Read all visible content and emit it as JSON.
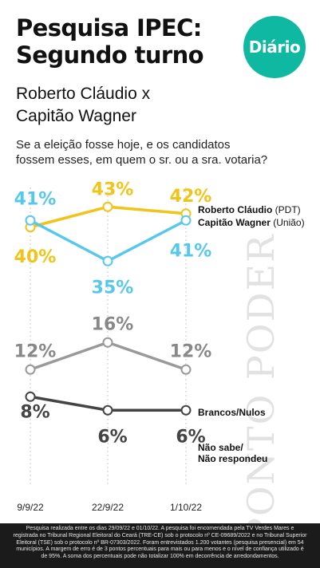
{
  "header": {
    "title_line1": "Pesquisa IPEC:",
    "title_line2": "Segundo turno",
    "logo": "Diário",
    "subtitle_line1": "Roberto Cláudio x",
    "subtitle_line2": "Capitão Wagner",
    "question_line1": "Se a eleição fosse hoje, e os candidatos",
    "question_line2": "fossem esses, em quem o sr. ou a sra. votaria?"
  },
  "watermark": "PONTO PODER",
  "colors": {
    "roberto": "#f0c419",
    "wagner": "#56c8ee",
    "brancos": "#999999",
    "nao_sabe": "#444444",
    "logo": "#0fb8a0"
  },
  "chart_data": {
    "type": "line",
    "categories": [
      "9/9/22",
      "22/9/22",
      "1/10/22"
    ],
    "series": [
      {
        "name": "Roberto Cláudio",
        "party": "(PDT)",
        "values": [
          40,
          43,
          42
        ],
        "color": "#f0c419",
        "labels": [
          "40%",
          "43%",
          "42%"
        ]
      },
      {
        "name": "Capitão Wagner",
        "party": "(União)",
        "values": [
          41,
          35,
          41
        ],
        "color": "#56c8ee",
        "labels": [
          "41%",
          "35%",
          "41%"
        ]
      },
      {
        "name": "Brancos/Nulos",
        "party": "",
        "values": [
          12,
          16,
          12
        ],
        "color": "#999999",
        "labels": [
          "12%",
          "16%",
          "12%"
        ]
      },
      {
        "name": "Não sabe/",
        "name2": "Não respondeu",
        "party": "",
        "values": [
          8,
          6,
          6
        ],
        "color": "#444444",
        "labels": [
          "8%",
          "6%",
          "6%"
        ]
      }
    ]
  },
  "footnote": {
    "line1": "Pesquisa realizada entre os dias 29/09/22 e 01/10/22. A pesquisa foi encomendada pela TV Verdes Mares e",
    "line2": "registrada no Tribunal Regional Eleitoral do Ceará (TRE-CE) sob o protocolo nº CE-09689/2022 e no Tribunal Superior",
    "line3": "Eleitoral (TSE) sob o protocolo nº BR-07303/2022. Foram entrevistados 1.200 votantes (pesquisa presencial) em 54",
    "line4": "municípios. A margem de erro é de 3 pontos percentuais para mais ou para menos e o nível de confiança utilizado é",
    "line5": "de 95%. A soma dos percentuais pode não totalizar 100% em decorrência de arredondamentos."
  }
}
